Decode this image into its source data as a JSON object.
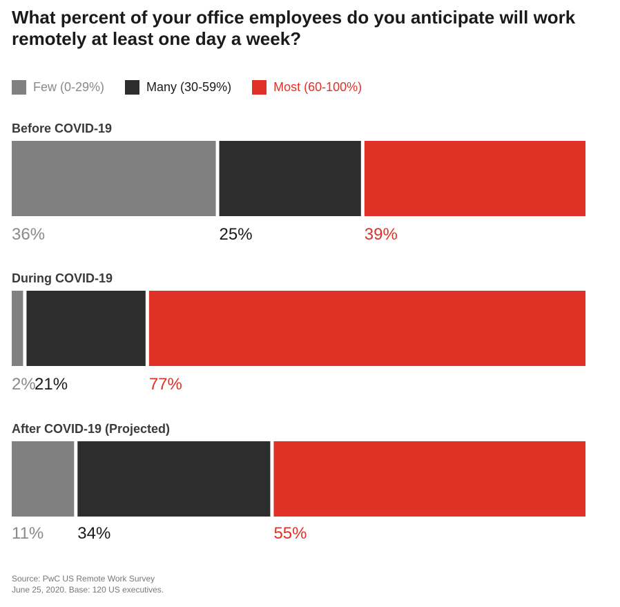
{
  "title": "What percent of your office employees do you anticipate will work remotely at least one day a week?",
  "colors": {
    "few": "#808080",
    "many": "#2d2d2d",
    "most": "#e03127",
    "few_text": "#8a8a8a",
    "many_text": "#1a1a1a",
    "most_text": "#e03127"
  },
  "legend": [
    {
      "key": "few",
      "label": "Few (0-29%)"
    },
    {
      "key": "many",
      "label": "Many (30-59%)"
    },
    {
      "key": "most",
      "label": "Most (60-100%)"
    }
  ],
  "chart_data": {
    "type": "bar",
    "orientation": "horizontal",
    "stacked": true,
    "normalized": true,
    "categories": [
      "Before COVID-19",
      "During COVID-19",
      "After COVID-19 (Projected)"
    ],
    "series": [
      {
        "name": "Few (0-29%)",
        "key": "few",
        "values": [
          36,
          2,
          11
        ]
      },
      {
        "name": "Many (30-59%)",
        "key": "many",
        "values": [
          25,
          21,
          34
        ]
      },
      {
        "name": "Most (60-100%)",
        "key": "most",
        "values": [
          39,
          77,
          55
        ]
      }
    ],
    "value_labels": [
      [
        "36%",
        "25%",
        "39%"
      ],
      [
        "2%",
        "21%",
        "77%"
      ],
      [
        "11%",
        "34%",
        "55%"
      ]
    ],
    "xlim": [
      0,
      100
    ],
    "grid": false,
    "legend_position": "top-left"
  },
  "footnote": {
    "line1": "Source: PwC US Remote Work Survey",
    "line2": "June 25, 2020. Base: 120 US executives."
  }
}
